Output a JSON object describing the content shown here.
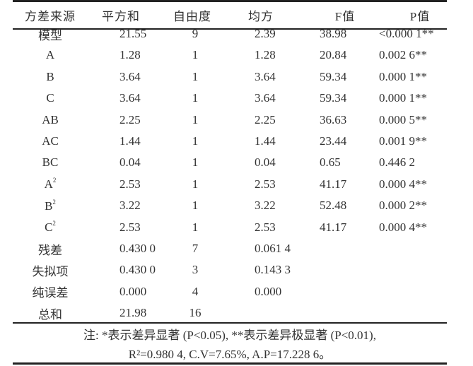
{
  "table": {
    "headers": [
      "方差来源",
      "平方和",
      "自由度",
      "均方",
      "F值",
      "P值"
    ],
    "rows": [
      {
        "source": "模型",
        "ss": "21.55",
        "df": "9",
        "ms": "2.39",
        "f": "38.98",
        "p": "<0.000 1**"
      },
      {
        "source": "A",
        "ss": "1.28",
        "df": "1",
        "ms": "1.28",
        "f": "20.84",
        "p": "0.002 6**"
      },
      {
        "source": "B",
        "ss": "3.64",
        "df": "1",
        "ms": "3.64",
        "f": "59.34",
        "p": "0.000 1**"
      },
      {
        "source": "C",
        "ss": "3.64",
        "df": "1",
        "ms": "3.64",
        "f": "59.34",
        "p": "0.000 1**"
      },
      {
        "source": "AB",
        "ss": "2.25",
        "df": "1",
        "ms": "2.25",
        "f": "36.63",
        "p": "0.000 5**"
      },
      {
        "source": "AC",
        "ss": "1.44",
        "df": "1",
        "ms": "1.44",
        "f": "23.44",
        "p": "0.001 9**"
      },
      {
        "source": "BC",
        "ss": "0.04",
        "df": "1",
        "ms": "0.04",
        "f": "0.65",
        "p": "0.446 2"
      },
      {
        "source": "A",
        "sup": "2",
        "ss": "2.53",
        "df": "1",
        "ms": "2.53",
        "f": "41.17",
        "p": "0.000 4**"
      },
      {
        "source": "B",
        "sup": "2",
        "ss": "3.22",
        "df": "1",
        "ms": "3.22",
        "f": "52.48",
        "p": "0.000 2**"
      },
      {
        "source": "C",
        "sup": "2",
        "ss": "2.53",
        "df": "1",
        "ms": "2.53",
        "f": "41.17",
        "p": "0.000 4**"
      },
      {
        "source": "残差",
        "ss": "0.430 0",
        "df": "7",
        "ms": "0.061 4",
        "f": "",
        "p": ""
      },
      {
        "source": "失拟项",
        "ss": "0.430 0",
        "df": "3",
        "ms": "0.143 3",
        "f": "",
        "p": ""
      },
      {
        "source": "纯误差",
        "ss": "0.000",
        "df": "4",
        "ms": "0.000",
        "f": "",
        "p": ""
      },
      {
        "source": "总和",
        "ss": "21.98",
        "df": "16",
        "ms": "",
        "f": "",
        "p": ""
      }
    ]
  },
  "note": {
    "line1": "注: *表示差异显著 (P<0.05), **表示差异极显著 (P<0.01),",
    "line2": "R²=0.980 4, C.V=7.65%, A.P=17.228 6。"
  }
}
